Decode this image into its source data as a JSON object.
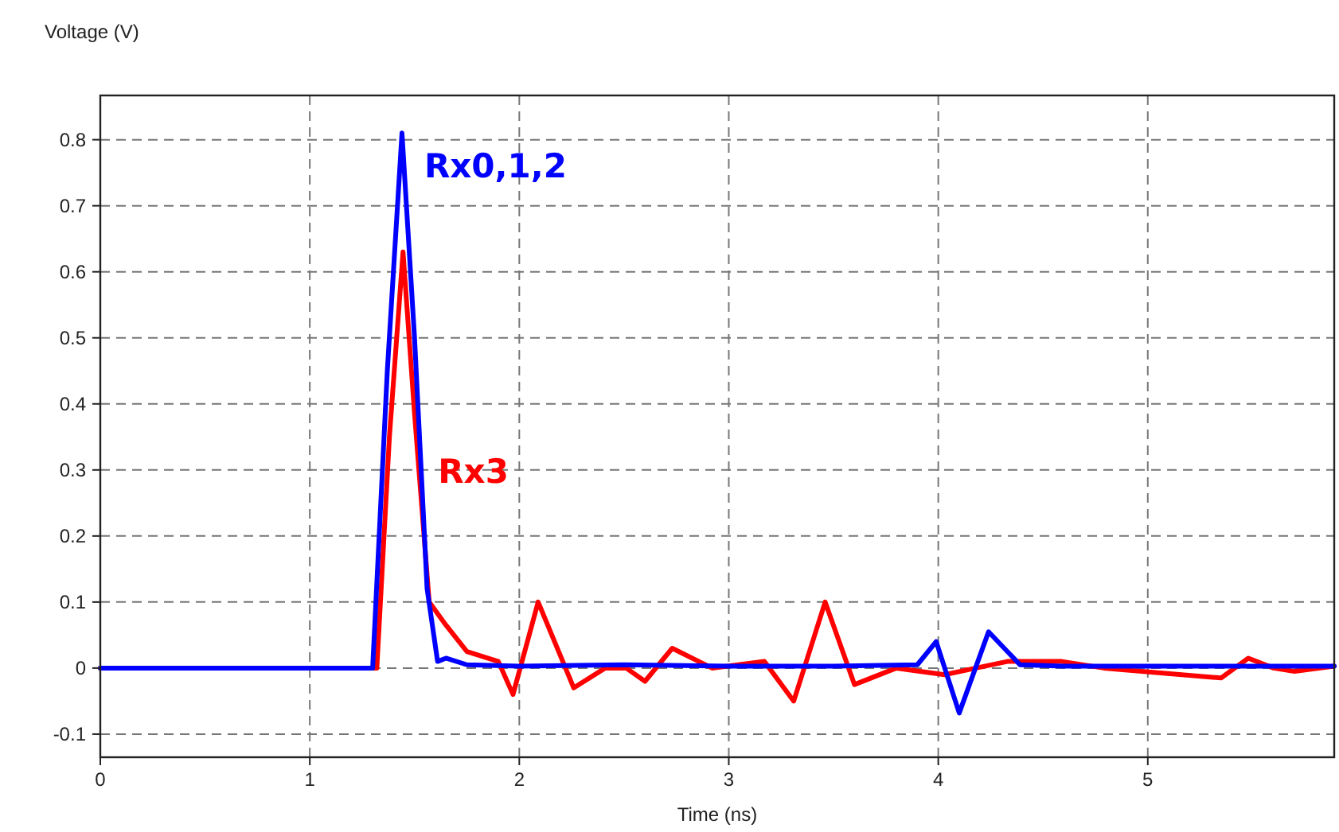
{
  "chart_data": {
    "type": "line",
    "xlabel": "Time (ns)",
    "ylabel": "Voltage (V)",
    "xlim": [
      0,
      5.89
    ],
    "ylim": [
      -0.135,
      0.867
    ],
    "xticks": [
      0,
      1,
      2,
      3,
      4,
      5
    ],
    "yticks": [
      -0.1,
      0,
      0.1,
      0.2,
      0.3,
      0.4,
      0.5,
      0.6,
      0.7,
      0.8
    ],
    "grid": true,
    "line_style": "solid",
    "marker": "none",
    "series": [
      {
        "name": "Rx3",
        "color": "#ff0000",
        "x": [
          0,
          1.32,
          1.38,
          1.445,
          1.5,
          1.57,
          1.65,
          1.75,
          1.9,
          1.97,
          2.09,
          2.26,
          2.41,
          2.51,
          2.6,
          2.73,
          2.92,
          3.17,
          3.31,
          3.46,
          3.6,
          3.8,
          4.03,
          4.18,
          4.33,
          4.59,
          4.79,
          5.35,
          5.48,
          5.6,
          5.7,
          5.89
        ],
        "values": [
          0,
          0,
          0.35,
          0.63,
          0.385,
          0.1,
          0.065,
          0.025,
          0.01,
          -0.04,
          0.1,
          -0.03,
          0,
          0,
          -0.02,
          0.03,
          0,
          0.01,
          -0.05,
          0.1,
          -0.025,
          0,
          -0.01,
          0,
          0.01,
          0.01,
          0,
          -0.015,
          0.015,
          0,
          -0.005,
          0.003
        ]
      },
      {
        "name": "Rx0,1,2",
        "color": "#0000ff",
        "x": [
          0,
          1.3,
          1.37,
          1.44,
          1.5,
          1.56,
          1.61,
          1.65,
          1.75,
          2.0,
          2.5,
          3.0,
          3.5,
          3.9,
          3.99,
          4.1,
          4.24,
          4.39,
          4.6,
          5.0,
          5.89
        ],
        "values": [
          0,
          0,
          0.45,
          0.81,
          0.5,
          0.12,
          0.01,
          0.015,
          0.005,
          0.003,
          0.005,
          0.003,
          0.003,
          0.005,
          0.04,
          -0.068,
          0.055,
          0.005,
          0.003,
          0.003,
          0.003
        ]
      }
    ]
  }
}
